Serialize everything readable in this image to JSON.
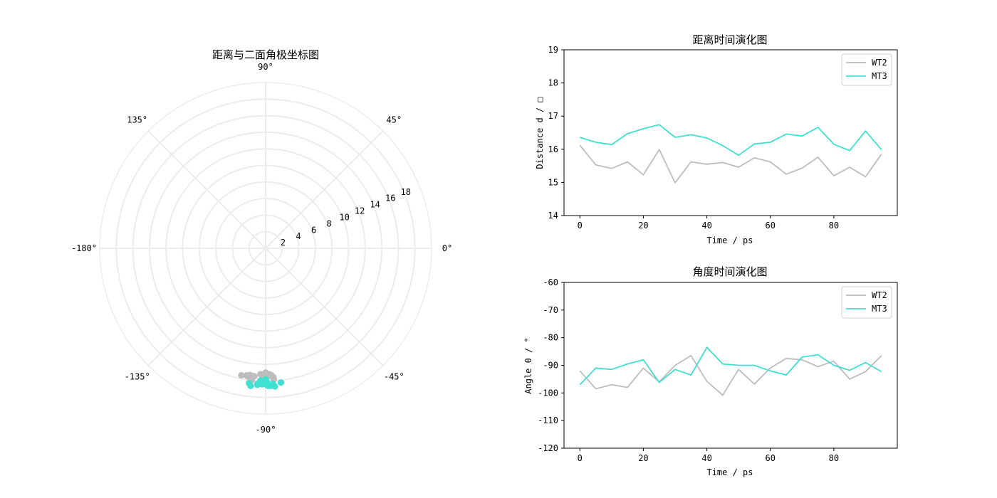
{
  "colors": {
    "wt2": "#bdbdbd",
    "mt3": "#40e0d0",
    "grid": "#ececec",
    "frame": "#000000"
  },
  "chart_data": [
    {
      "type": "scatter",
      "coordinate_system": "polar",
      "title": "距离与二面角极坐标图",
      "angle_ticks": [
        {
          "deg": 0,
          "label": "0°"
        },
        {
          "deg": 45,
          "label": "45°"
        },
        {
          "deg": 90,
          "label": "90°"
        },
        {
          "deg": 135,
          "label": "135°"
        },
        {
          "deg": 180,
          "label": "-180°"
        },
        {
          "deg": -135,
          "label": "-135°"
        },
        {
          "deg": -90,
          "label": "-90°"
        },
        {
          "deg": -45,
          "label": "-45°"
        }
      ],
      "radial_ticks": [
        2,
        4,
        6,
        8,
        10,
        12,
        14,
        16,
        18
      ],
      "rlim": [
        0,
        20
      ],
      "grid": true,
      "series": [
        {
          "color_key": "wt2",
          "r": [
            16.1,
            15.5,
            15.4,
            15.6,
            15.2,
            16.0,
            15.0,
            15.6,
            15.5,
            15.6,
            15.5,
            15.7,
            15.6,
            15.3,
            15.4,
            15.8,
            15.2,
            15.5,
            15.2,
            15.9
          ],
          "theta": [
            -92,
            -98.5,
            -97,
            -98,
            -91,
            -96,
            -90,
            -86.5,
            -95.8,
            -100.8,
            -91.5,
            -96.8,
            -91,
            -87.5,
            -88,
            -90.5,
            -88.5,
            -95,
            -92.3,
            -86.5
          ]
        },
        {
          "color_key": "mt3",
          "r": [
            16.4,
            16.2,
            16.1,
            16.5,
            16.6,
            16.7,
            16.4,
            16.4,
            16.3,
            16.1,
            15.8,
            16.2,
            16.2,
            16.5,
            16.4,
            16.7,
            16.2,
            16.0,
            16.6,
            16.0
          ],
          "theta": [
            -97,
            -91,
            -91.5,
            -89.5,
            -88,
            -96.2,
            -91.5,
            -93.5,
            -83.5,
            -89.5,
            -90,
            -90,
            -92,
            -93.5,
            -87,
            -86.2,
            -90,
            -91.8,
            -89,
            -92.3
          ]
        }
      ]
    },
    {
      "type": "line",
      "title": "距离时间演化图",
      "xlabel": "Time / ps",
      "ylabel": "Distance d / □",
      "x": [
        0,
        5,
        10,
        15,
        20,
        25,
        30,
        35,
        40,
        45,
        50,
        55,
        60,
        65,
        70,
        75,
        80,
        85,
        90,
        95
      ],
      "xlim": [
        -5,
        100
      ],
      "ylim": [
        14,
        19
      ],
      "xticks": [
        0,
        20,
        40,
        60,
        80
      ],
      "yticks": [
        14,
        15,
        16,
        17,
        18,
        19
      ],
      "legend_position": "upper-right",
      "series": [
        {
          "name": "WT2",
          "color_key": "wt2",
          "values": [
            16.12,
            15.53,
            15.42,
            15.62,
            15.23,
            15.99,
            14.99,
            15.62,
            15.55,
            15.6,
            15.46,
            15.74,
            15.62,
            15.25,
            15.43,
            15.76,
            15.2,
            15.46,
            15.17,
            15.85
          ]
        },
        {
          "name": "MT3",
          "color_key": "mt3",
          "values": [
            16.36,
            16.21,
            16.14,
            16.47,
            16.62,
            16.74,
            16.36,
            16.44,
            16.34,
            16.11,
            15.82,
            16.16,
            16.21,
            16.46,
            16.4,
            16.66,
            16.15,
            15.96,
            16.55,
            15.99
          ]
        }
      ]
    },
    {
      "type": "line",
      "title": "角度时间演化图",
      "xlabel": "Time / ps",
      "ylabel": "Angle θ / °",
      "x": [
        0,
        5,
        10,
        15,
        20,
        25,
        30,
        35,
        40,
        45,
        50,
        55,
        60,
        65,
        70,
        75,
        80,
        85,
        90,
        95
      ],
      "xlim": [
        -5,
        100
      ],
      "ylim": [
        -120,
        -60
      ],
      "xticks": [
        0,
        20,
        40,
        60,
        80
      ],
      "yticks": [
        -120,
        -110,
        -100,
        -90,
        -80,
        -70,
        -60
      ],
      "legend_position": "upper-right",
      "series": [
        {
          "name": "WT2",
          "color_key": "wt2",
          "values": [
            -92,
            -98.5,
            -97,
            -98,
            -91,
            -96,
            -90,
            -86.5,
            -95.8,
            -100.8,
            -91.5,
            -96.8,
            -91,
            -87.5,
            -88,
            -90.5,
            -88.5,
            -95,
            -92.3,
            -86.5
          ]
        },
        {
          "name": "MT3",
          "color_key": "mt3",
          "values": [
            -97,
            -91,
            -91.5,
            -89.5,
            -88,
            -96.2,
            -91.5,
            -93.5,
            -83.5,
            -89.5,
            -90,
            -90,
            -92,
            -93.5,
            -87,
            -86.2,
            -90,
            -91.8,
            -89,
            -92.3
          ]
        }
      ]
    }
  ]
}
